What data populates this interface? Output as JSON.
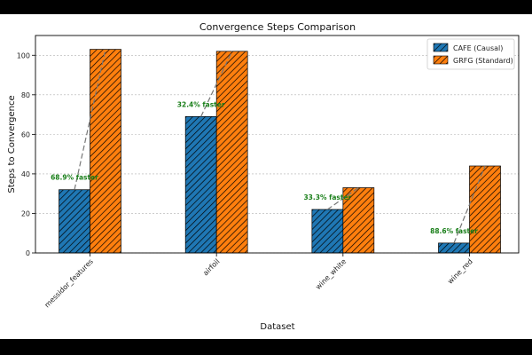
{
  "chart_data": {
    "type": "bar",
    "title": "Convergence Steps Comparison",
    "xlabel": "Dataset",
    "ylabel": "Steps to Convergence",
    "categories": [
      "messidor_features",
      "airfoil",
      "wine_white",
      "wine_red"
    ],
    "series": [
      {
        "name": "CAFE (Causal)",
        "color": "#1f77b4",
        "values": [
          32,
          69,
          22,
          5
        ]
      },
      {
        "name": "GRFG (Standard)",
        "color": "#ff7f0e",
        "values": [
          103,
          102,
          33,
          44
        ]
      }
    ],
    "annotations": [
      "68.9% faster",
      "32.4% faster",
      "33.3% faster",
      "88.6% faster"
    ],
    "ylim": [
      0,
      110
    ],
    "yticks": [
      0,
      20,
      40,
      60,
      80,
      100
    ],
    "grid": "y-dashed",
    "legend": "top-right",
    "hatch": "diagonal"
  }
}
